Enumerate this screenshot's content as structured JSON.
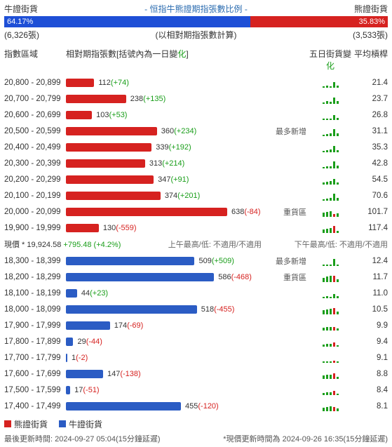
{
  "header": {
    "bull_label": "牛證街貨",
    "title": "- 恒指牛熊證期指張數比例 -",
    "bear_label": "熊證街貨",
    "bull_pct": 64.17,
    "bear_pct": 35.83,
    "bull_pct_txt": "64.17%",
    "bear_pct_txt": "35.83%",
    "bull_count": "(6,326張)",
    "bear_count": "(3,533張)",
    "count_note": "(以相對期指張數計算)",
    "bull_color": "#1e4fd6",
    "bear_color": "#d62220"
  },
  "cols": {
    "range": "指數區域",
    "bar_prefix": "相對期指張數[括號內為一日變",
    "bar_suffix": "化",
    "bar_close": "]",
    "spark_prefix": "五日街貨變",
    "spark_suffix": "化",
    "lev": "平均槓桿"
  },
  "max_value": 638,
  "bear_rows": [
    {
      "range": "20,800 - 20,899",
      "value": 112,
      "chg": "+74",
      "chg_sign": 1,
      "tag": "",
      "lev": "21.4",
      "spark": [
        2,
        3,
        2,
        8,
        3
      ]
    },
    {
      "range": "20,700 - 20,799",
      "value": 238,
      "chg": "+135",
      "chg_sign": 1,
      "tag": "",
      "lev": "23.7",
      "spark": [
        2,
        4,
        3,
        9,
        4
      ]
    },
    {
      "range": "20,600 - 20,699",
      "value": 103,
      "chg": "+53",
      "chg_sign": 1,
      "tag": "",
      "lev": "26.8",
      "spark": [
        1,
        2,
        2,
        7,
        3
      ]
    },
    {
      "range": "20,500 - 20,599",
      "value": 360,
      "chg": "+234",
      "chg_sign": 1,
      "tag": "最多新增",
      "lev": "31.1",
      "spark": [
        2,
        3,
        4,
        10,
        4
      ]
    },
    {
      "range": "20,400 - 20,499",
      "value": 339,
      "chg": "+192",
      "chg_sign": 1,
      "tag": "",
      "lev": "35.3",
      "spark": [
        2,
        3,
        4,
        9,
        3
      ]
    },
    {
      "range": "20,300 - 20,399",
      "value": 313,
      "chg": "+214",
      "chg_sign": 1,
      "tag": "",
      "lev": "42.8",
      "spark": [
        2,
        3,
        3,
        10,
        4
      ]
    },
    {
      "range": "20,200 - 20,299",
      "value": 347,
      "chg": "+91",
      "chg_sign": 1,
      "tag": "",
      "lev": "54.5",
      "spark": [
        3,
        4,
        5,
        8,
        3
      ]
    },
    {
      "range": "20,100 - 20,199",
      "value": 374,
      "chg": "+201",
      "chg_sign": 1,
      "tag": "",
      "lev": "70.6",
      "spark": [
        2,
        3,
        4,
        10,
        4
      ]
    },
    {
      "range": "20,000 - 20,099",
      "value": 638,
      "chg": "-84",
      "chg_sign": -1,
      "tag": "重貨區",
      "lev": "101.7",
      "spark": [
        6,
        7,
        8,
        -4,
        5
      ]
    },
    {
      "range": "19,900 - 19,999",
      "value": 130,
      "chg": "-559",
      "chg_sign": -1,
      "tag": "",
      "lev": "117.4",
      "spark": [
        5,
        6,
        7,
        -10,
        3
      ]
    }
  ],
  "price": {
    "label": "現價 *",
    "value": "19,924.58",
    "chg": "+795.48 (+4.2%)",
    "am": "上午最高/低: 不適用/不適用",
    "pm": "下午最高/低: 不適用/不適用"
  },
  "bull_rows": [
    {
      "range": "18,300 - 18,399",
      "value": 509,
      "chg": "+509",
      "chg_sign": 1,
      "tag": "最多新增",
      "lev": "12.4",
      "spark": [
        1,
        1,
        1,
        10,
        2
      ]
    },
    {
      "range": "18,200 - 18,299",
      "value": 586,
      "chg": "-468",
      "chg_sign": -1,
      "tag": "重貨區",
      "lev": "11.7",
      "spark": [
        6,
        8,
        9,
        -9,
        4
      ]
    },
    {
      "range": "18,100 - 18,199",
      "value": 44,
      "chg": "+23",
      "chg_sign": 1,
      "tag": "",
      "lev": "11.0",
      "spark": [
        2,
        3,
        2,
        6,
        3
      ]
    },
    {
      "range": "18,000 - 18,099",
      "value": 518,
      "chg": "-455",
      "chg_sign": -1,
      "tag": "",
      "lev": "10.5",
      "spark": [
        6,
        7,
        8,
        -9,
        4
      ]
    },
    {
      "range": "17,900 - 17,999",
      "value": 174,
      "chg": "-69",
      "chg_sign": -1,
      "tag": "",
      "lev": "9.9",
      "spark": [
        4,
        5,
        5,
        -5,
        3
      ]
    },
    {
      "range": "17,800 - 17,899",
      "value": 29,
      "chg": "-44",
      "chg_sign": -1,
      "tag": "",
      "lev": "9.4",
      "spark": [
        3,
        4,
        4,
        -6,
        2
      ]
    },
    {
      "range": "17,700 - 17,799",
      "value": 1,
      "chg": "-2",
      "chg_sign": -1,
      "tag": "",
      "lev": "9.1",
      "spark": [
        2,
        2,
        2,
        -3,
        1
      ]
    },
    {
      "range": "17,600 - 17,699",
      "value": 147,
      "chg": "-138",
      "chg_sign": -1,
      "tag": "",
      "lev": "8.8",
      "spark": [
        5,
        6,
        6,
        -8,
        3
      ]
    },
    {
      "range": "17,500 - 17,599",
      "value": 17,
      "chg": "-51",
      "chg_sign": -1,
      "tag": "",
      "lev": "8.4",
      "spark": [
        3,
        4,
        4,
        -6,
        2
      ]
    },
    {
      "range": "17,400 - 17,499",
      "value": 455,
      "chg": "-120",
      "chg_sign": -1,
      "tag": "",
      "lev": "8.1",
      "spark": [
        5,
        6,
        7,
        -6,
        4
      ]
    }
  ],
  "legend": {
    "bear": "熊證街貨",
    "bull": "牛證街貨"
  },
  "footer": {
    "left": "最後更新時間: 2024-09-27 05:04(15分鐘延遲)",
    "right": "*現價更新時間為 2024-09-26 16:35(15分鐘延遲)"
  }
}
